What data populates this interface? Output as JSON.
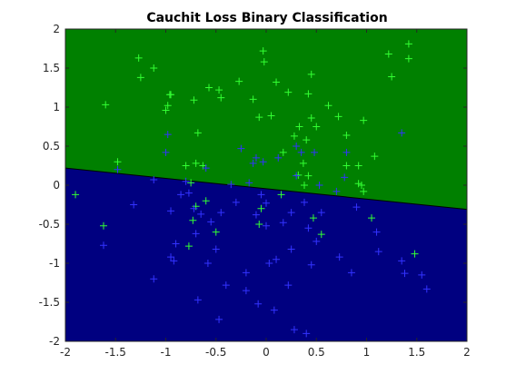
{
  "chart_data": {
    "type": "scatter",
    "title": "Cauchit Loss Binary Classification",
    "xlabel": "",
    "ylabel": "",
    "xlim": [
      -2,
      2
    ],
    "ylim": [
      -2,
      2
    ],
    "x_ticks": [
      "-2",
      "-1.5",
      "-1",
      "-0.5",
      "0",
      "0.5",
      "1",
      "1.5",
      "2"
    ],
    "y_ticks": [
      "-2",
      "-1.5",
      "-1",
      "-0.5",
      "0",
      "0.5",
      "1",
      "1.5",
      "2"
    ],
    "grid": false,
    "legend": "none",
    "decision_boundary": {
      "x": [
        -2,
        2
      ],
      "y": [
        0.22,
        -0.31
      ]
    },
    "regions": [
      {
        "side": "above",
        "color": "#008000"
      },
      {
        "side": "below",
        "color": "#000080"
      }
    ],
    "marker": "+",
    "series": [
      {
        "color": "#33ff33",
        "points": [
          [
            -1.9,
            -0.12
          ],
          [
            -1.6,
            1.03
          ],
          [
            -1.48,
            0.3
          ],
          [
            -1.27,
            1.63
          ],
          [
            -1.25,
            1.38
          ],
          [
            -1.12,
            1.5
          ],
          [
            -1.0,
            0.96
          ],
          [
            -0.98,
            1.02
          ],
          [
            -0.96,
            1.16
          ],
          [
            -0.95,
            1.16
          ],
          [
            -0.8,
            0.25
          ],
          [
            -0.72,
            1.09
          ],
          [
            -0.7,
            0.28
          ],
          [
            -0.68,
            0.67
          ],
          [
            -0.63,
            0.25
          ],
          [
            -0.57,
            1.25
          ],
          [
            -0.47,
            1.22
          ],
          [
            -0.45,
            1.12
          ],
          [
            -0.27,
            1.33
          ],
          [
            -0.13,
            1.1
          ],
          [
            -0.07,
            0.87
          ],
          [
            -0.03,
            1.72
          ],
          [
            -0.02,
            1.58
          ],
          [
            0.05,
            0.89
          ],
          [
            0.1,
            1.32
          ],
          [
            0.17,
            0.42
          ],
          [
            0.22,
            1.19
          ],
          [
            0.28,
            0.63
          ],
          [
            0.33,
            0.75
          ],
          [
            0.37,
            0.28
          ],
          [
            0.4,
            0.58
          ],
          [
            0.42,
            1.17
          ],
          [
            0.45,
            1.42
          ],
          [
            0.45,
            0.86
          ],
          [
            0.5,
            0.75
          ],
          [
            0.62,
            1.02
          ],
          [
            0.72,
            0.88
          ],
          [
            0.8,
            0.64
          ],
          [
            0.8,
            0.25
          ],
          [
            0.92,
            0.25
          ],
          [
            0.92,
            0.02
          ],
          [
            0.97,
            0.83
          ],
          [
            1.08,
            0.37
          ],
          [
            1.22,
            1.68
          ],
          [
            1.25,
            1.39
          ],
          [
            1.42,
            1.81
          ],
          [
            1.42,
            1.62
          ],
          [
            0.38,
            0.0
          ],
          [
            0.15,
            -0.12
          ],
          [
            0.32,
            0.13
          ],
          [
            0.42,
            0.12
          ],
          [
            0.95,
            0.0
          ],
          [
            -0.7,
            -0.27
          ],
          [
            -0.73,
            -0.45
          ],
          [
            -0.6,
            -0.2
          ],
          [
            -0.5,
            -0.6
          ],
          [
            -0.07,
            -0.5
          ],
          [
            -0.05,
            -0.3
          ],
          [
            0.47,
            -0.42
          ],
          [
            0.55,
            -0.63
          ],
          [
            0.97,
            -0.08
          ],
          [
            1.05,
            -0.42
          ],
          [
            1.48,
            -0.88
          ],
          [
            -1.62,
            -0.52
          ],
          [
            -0.77,
            -0.78
          ],
          [
            -0.75,
            0.03
          ]
        ]
      },
      {
        "color": "#3333ff",
        "points": [
          [
            -1.62,
            -0.77
          ],
          [
            -1.48,
            0.2
          ],
          [
            -1.32,
            -0.25
          ],
          [
            -1.12,
            0.07
          ],
          [
            -1.12,
            -1.2
          ],
          [
            -1.0,
            0.42
          ],
          [
            -0.98,
            0.65
          ],
          [
            -0.95,
            -0.33
          ],
          [
            -0.95,
            -0.92
          ],
          [
            -0.92,
            -0.97
          ],
          [
            -0.9,
            -0.75
          ],
          [
            -0.85,
            -0.12
          ],
          [
            -0.8,
            0.05
          ],
          [
            -0.77,
            -0.1
          ],
          [
            -0.72,
            -0.3
          ],
          [
            -0.7,
            -0.62
          ],
          [
            -0.68,
            -1.47
          ],
          [
            -0.65,
            -0.37
          ],
          [
            -0.6,
            0.22
          ],
          [
            -0.58,
            -1.0
          ],
          [
            -0.55,
            -0.47
          ],
          [
            -0.5,
            -0.82
          ],
          [
            -0.47,
            -1.72
          ],
          [
            -0.45,
            -0.35
          ],
          [
            -0.4,
            -1.28
          ],
          [
            -0.35,
            0.01
          ],
          [
            -0.3,
            -0.22
          ],
          [
            -0.25,
            0.47
          ],
          [
            -0.2,
            -1.12
          ],
          [
            -0.2,
            -1.35
          ],
          [
            -0.17,
            0.03
          ],
          [
            -0.13,
            0.28
          ],
          [
            -0.1,
            0.35
          ],
          [
            -0.08,
            -1.52
          ],
          [
            -0.05,
            -0.12
          ],
          [
            -0.03,
            0.3
          ],
          [
            0.0,
            -0.23
          ],
          [
            0.03,
            -1.0
          ],
          [
            0.08,
            -1.6
          ],
          [
            0.1,
            -0.95
          ],
          [
            0.12,
            0.35
          ],
          [
            0.17,
            -0.48
          ],
          [
            0.22,
            -1.28
          ],
          [
            0.25,
            -0.82
          ],
          [
            0.28,
            -1.85
          ],
          [
            0.3,
            0.5
          ],
          [
            0.3,
            0.12
          ],
          [
            0.35,
            0.42
          ],
          [
            0.38,
            -0.22
          ],
          [
            0.4,
            -1.9
          ],
          [
            0.42,
            -0.55
          ],
          [
            0.45,
            -1.02
          ],
          [
            0.48,
            0.42
          ],
          [
            0.5,
            -0.72
          ],
          [
            0.53,
            0.0
          ],
          [
            0.55,
            -0.35
          ],
          [
            0.7,
            -0.08
          ],
          [
            0.73,
            -0.92
          ],
          [
            0.78,
            0.1
          ],
          [
            0.8,
            0.42
          ],
          [
            0.85,
            -1.12
          ],
          [
            0.9,
            -0.28
          ],
          [
            1.1,
            -0.6
          ],
          [
            1.12,
            -0.85
          ],
          [
            1.35,
            0.67
          ],
          [
            1.35,
            -0.97
          ],
          [
            1.38,
            -1.13
          ],
          [
            1.55,
            -1.15
          ],
          [
            1.6,
            -1.33
          ],
          [
            0.0,
            -0.52
          ],
          [
            0.25,
            -0.35
          ],
          [
            -0.1,
            -0.38
          ]
        ]
      }
    ]
  }
}
